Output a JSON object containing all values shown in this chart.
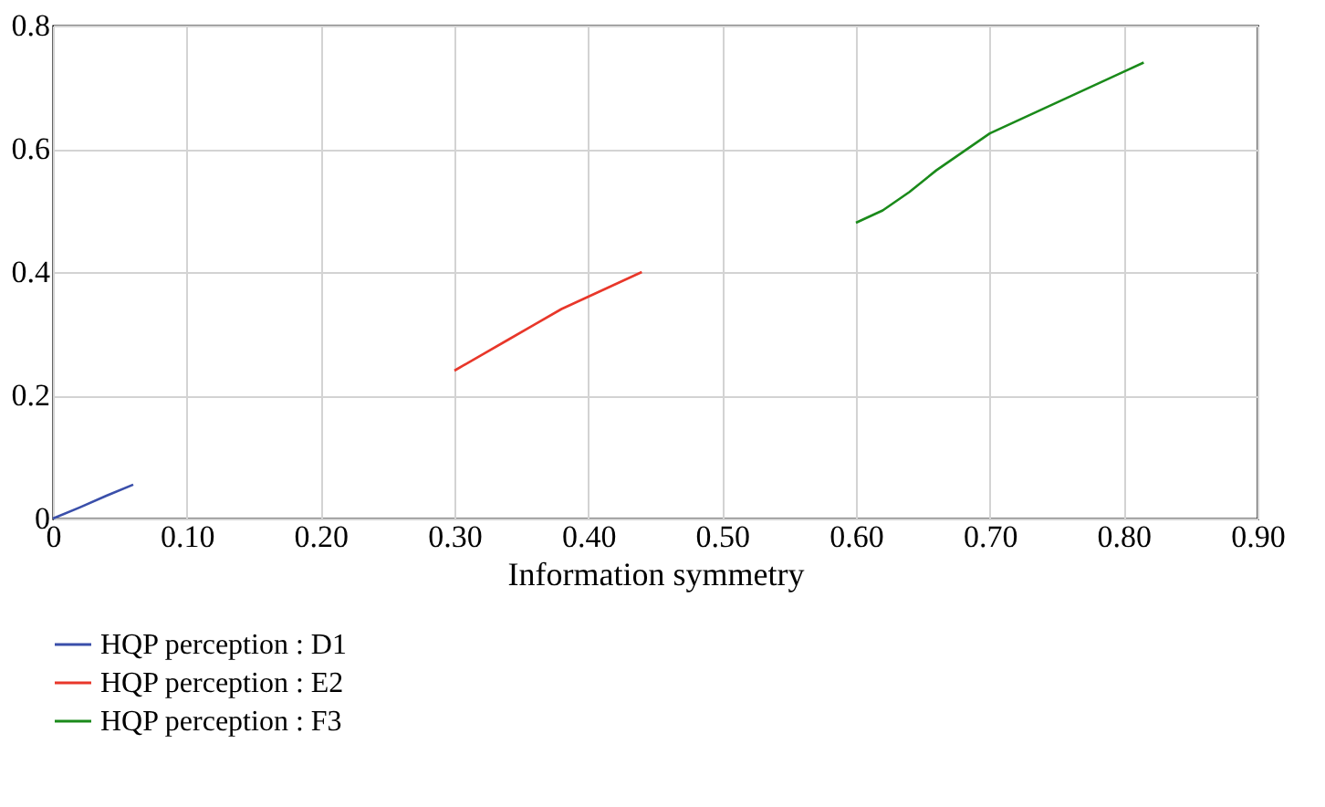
{
  "chart_data": {
    "type": "line",
    "xlabel": "Information symmetry",
    "xlim": [
      0,
      0.9
    ],
    "ylim": [
      0,
      0.8
    ],
    "xticks": [
      0,
      {
        "value": 0.1,
        "label": "0.10"
      },
      {
        "value": 0.2,
        "label": "0.20"
      },
      {
        "value": 0.3,
        "label": "0.30"
      },
      {
        "value": 0.4,
        "label": "0.40"
      },
      {
        "value": 0.5,
        "label": "0.50"
      },
      {
        "value": 0.6,
        "label": "0.60"
      },
      {
        "value": 0.7,
        "label": "0.70"
      },
      {
        "value": 0.8,
        "label": "0.80"
      },
      {
        "value": 0.9,
        "label": "0.90"
      }
    ],
    "yticks": [
      0,
      0.2,
      0.4,
      0.6,
      0.8
    ],
    "grid": true,
    "legend": "bottom",
    "marker": "none",
    "line_style": "solid",
    "series": [
      {
        "name": "HQP perception : D1",
        "color": "#3a4faa",
        "x": [
          0,
          0.02,
          0.04,
          0.06
        ],
        "values": [
          0,
          0.018,
          0.037,
          0.055
        ]
      },
      {
        "name": "HQP perception : E2",
        "color": "#e8372a",
        "x": [
          0.3,
          0.32,
          0.34,
          0.36,
          0.38,
          0.4,
          0.42,
          0.44
        ],
        "values": [
          0.24,
          0.265,
          0.29,
          0.315,
          0.34,
          0.36,
          0.38,
          0.4
        ]
      },
      {
        "name": "HQP perception : F3",
        "color": "#1a8a1a",
        "x": [
          0.6,
          0.62,
          0.64,
          0.66,
          0.68,
          0.7,
          0.72,
          0.74,
          0.76,
          0.78,
          0.8,
          0.815
        ],
        "values": [
          0.48,
          0.5,
          0.53,
          0.565,
          0.595,
          0.625,
          0.645,
          0.665,
          0.685,
          0.705,
          0.725,
          0.74
        ]
      }
    ]
  }
}
